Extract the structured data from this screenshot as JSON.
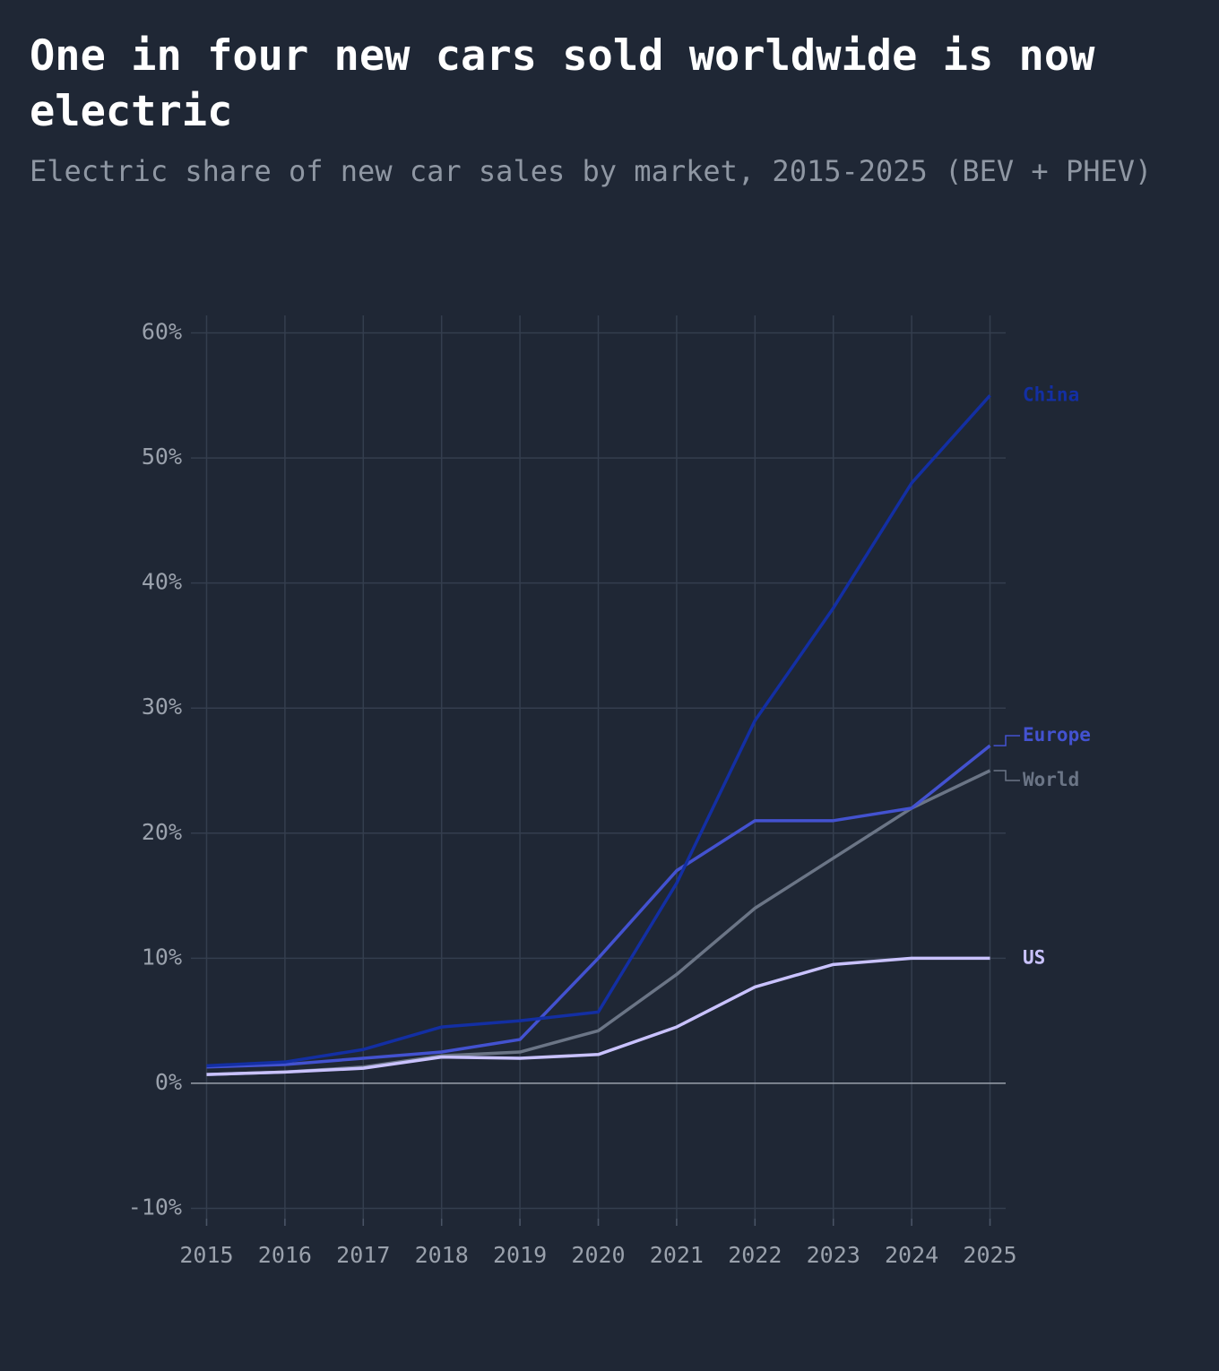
{
  "chart_data": {
    "type": "line",
    "title": "One in four new cars sold worldwide is now electric",
    "subtitle": "Electric share of new car sales by market, 2015-2025 (BEV + PHEV)",
    "x": [
      2015,
      2016,
      2017,
      2018,
      2019,
      2020,
      2021,
      2022,
      2023,
      2024,
      2025
    ],
    "xlim": [
      2014.8,
      2025.2
    ],
    "xticks": [
      2015,
      2016,
      2017,
      2018,
      2019,
      2020,
      2021,
      2022,
      2023,
      2024,
      2025
    ],
    "ylim": [
      -11.4,
      61.4
    ],
    "yticks": [
      {
        "value": -10,
        "label": "-10%"
      },
      {
        "value": 0,
        "label": "0%"
      },
      {
        "value": 10,
        "label": "10%"
      },
      {
        "value": 20,
        "label": "20%"
      },
      {
        "value": 30,
        "label": "30%"
      },
      {
        "value": 40,
        "label": "40%"
      },
      {
        "value": 50,
        "label": "50%"
      },
      {
        "value": 60,
        "label": "60%"
      }
    ],
    "grid": true,
    "series": [
      {
        "name": "World",
        "color": "#6b7586",
        "values": [
          0.7,
          0.9,
          1.3,
          2.2,
          2.5,
          4.2,
          8.7,
          14,
          18,
          22,
          25
        ]
      },
      {
        "name": "US",
        "color": "#c9c2ff",
        "values": [
          0.7,
          0.9,
          1.2,
          2.1,
          2.0,
          2.3,
          4.5,
          7.7,
          9.5,
          10,
          10
        ]
      },
      {
        "name": "Europe",
        "color": "#4352d0",
        "values": [
          1.3,
          1.5,
          2.0,
          2.5,
          3.5,
          10,
          17,
          21,
          21,
          22,
          27
        ]
      },
      {
        "name": "China",
        "color": "#132fa3",
        "values": [
          1.4,
          1.7,
          2.7,
          4.5,
          5.0,
          5.7,
          16,
          29,
          38,
          48,
          55
        ]
      }
    ]
  }
}
